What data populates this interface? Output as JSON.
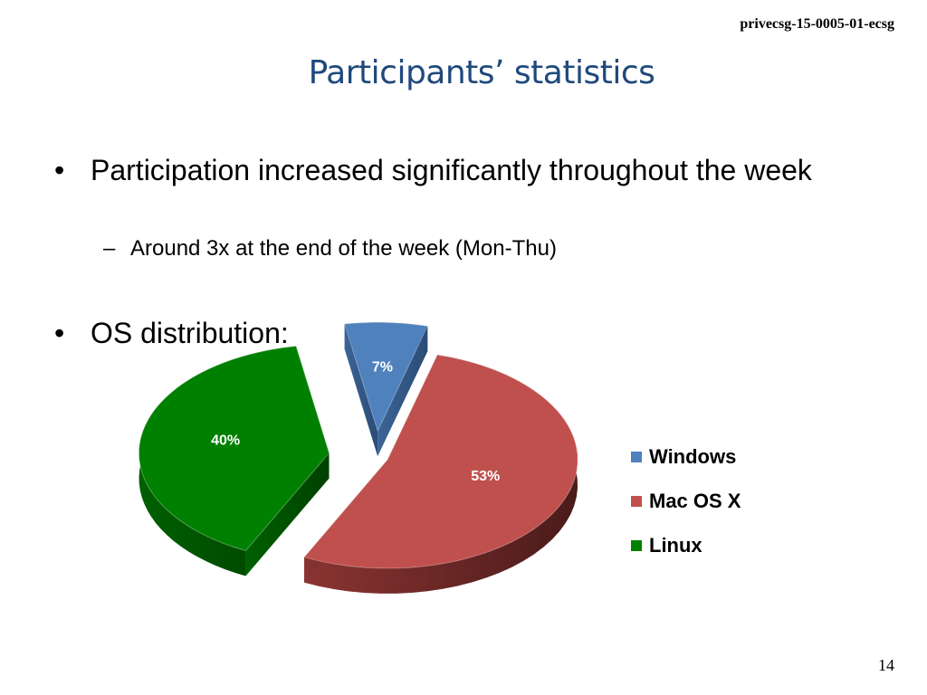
{
  "header": {
    "doc_id": "privecsg-15-0005-01-ecsg"
  },
  "slide": {
    "title": "Participants’ statistics",
    "bullets": [
      {
        "marker": "•",
        "text": "Participation increased significantly throughout the week"
      },
      {
        "marker": "–",
        "text": "Around 3x at the end of the week (Mon-Thu)"
      },
      {
        "marker": "•",
        "text": "OS distribution:"
      }
    ],
    "page_number": "14"
  },
  "chart_data": {
    "type": "pie",
    "categories": [
      "Windows",
      "Mac OS X",
      "Linux"
    ],
    "values": [
      7,
      53,
      40
    ],
    "data_labels": [
      "7%",
      "53%",
      "40%"
    ],
    "colors": [
      "#4f81bd",
      "#c0504d",
      "#008000"
    ],
    "style": "3d-exploded",
    "legend": {
      "position": "right",
      "items": [
        "Windows",
        "Mac OS X",
        "Linux"
      ]
    }
  }
}
